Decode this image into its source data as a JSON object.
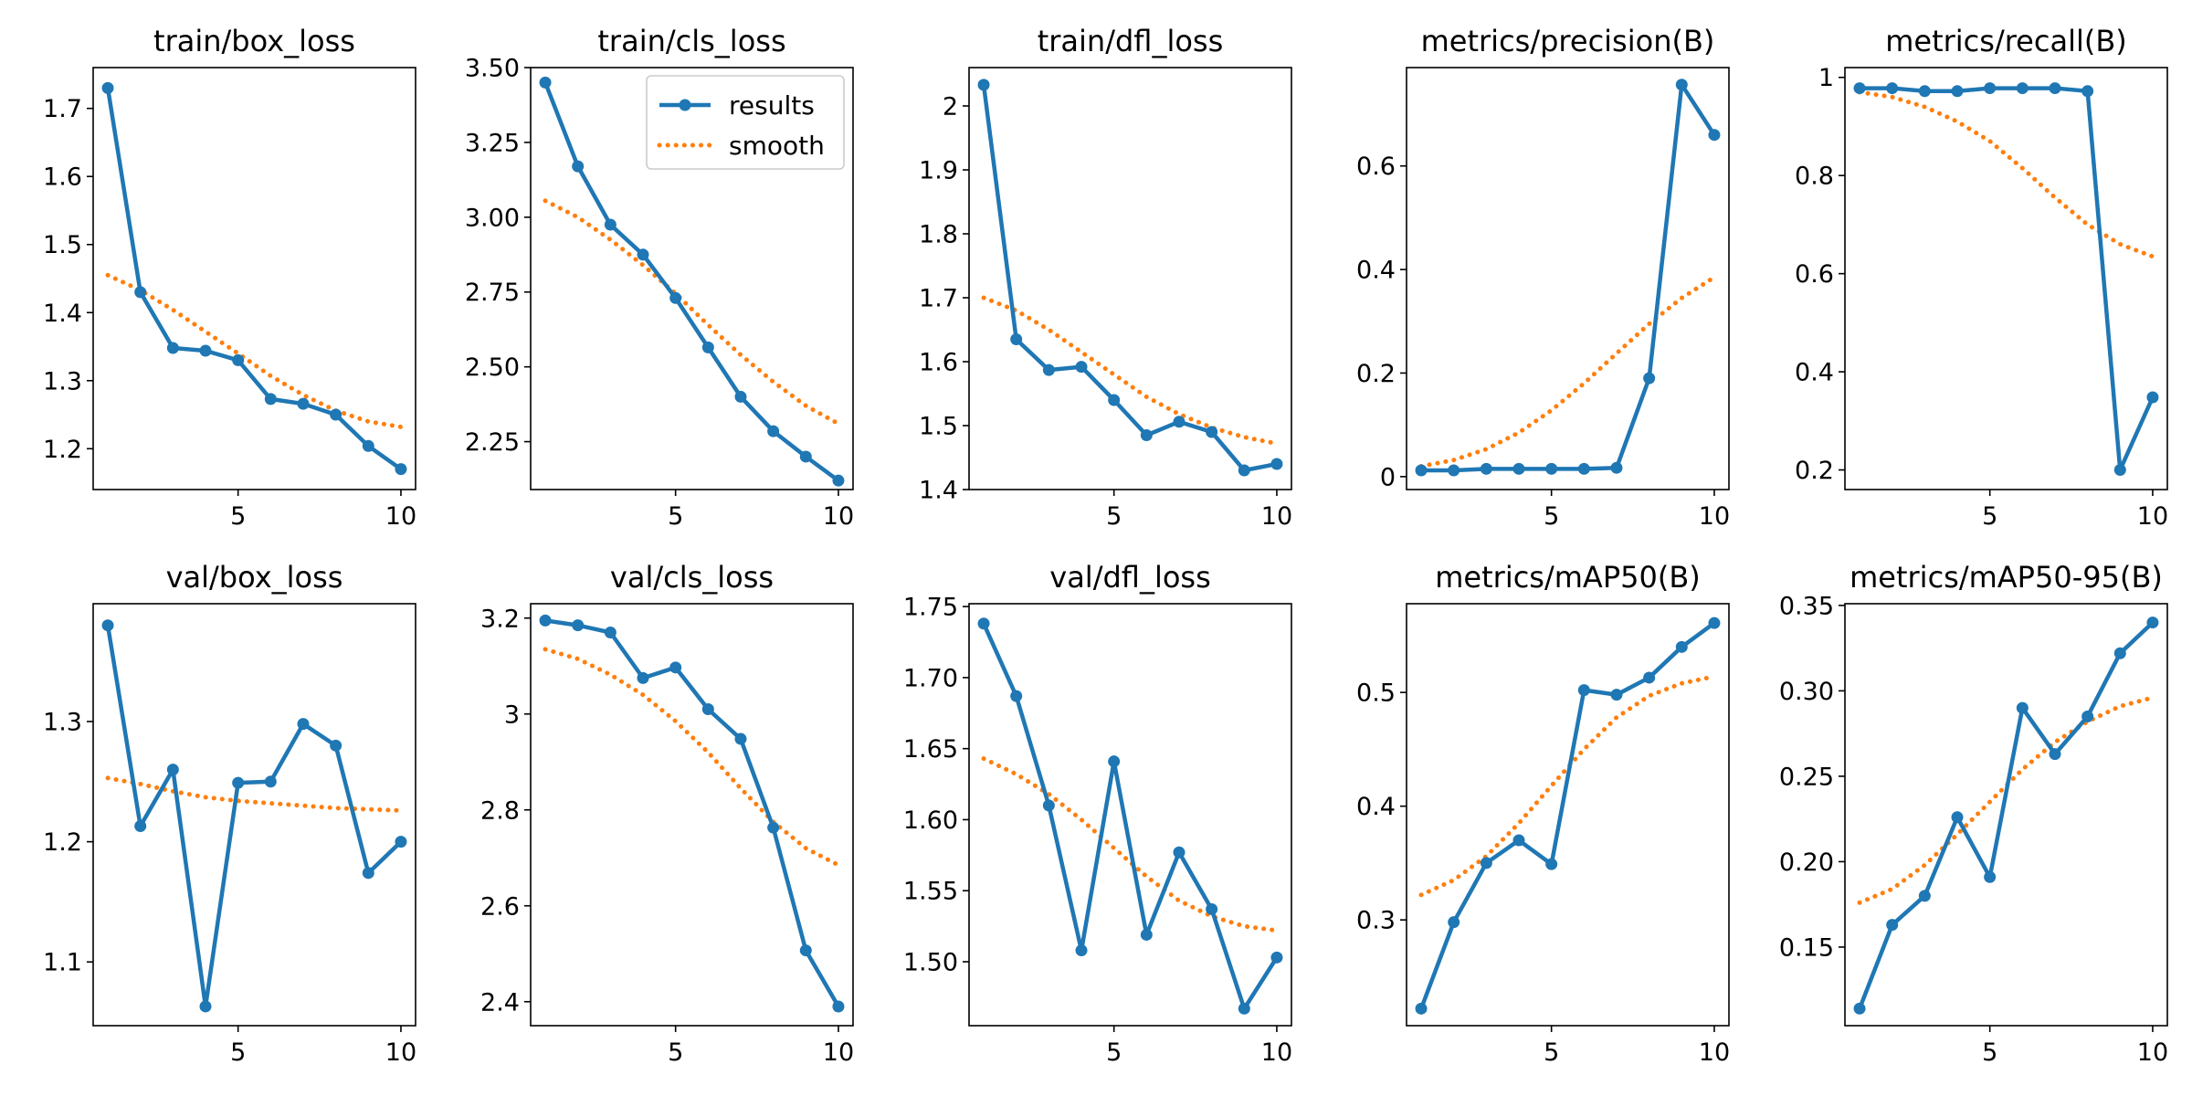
{
  "legend": {
    "results": "results",
    "smooth": "smooth"
  },
  "colors": {
    "results": "#1f77b4",
    "smooth": "#ff7f0e"
  },
  "chart_data": [
    {
      "type": "line",
      "title": "train/box_loss",
      "x": [
        1,
        2,
        3,
        4,
        5,
        6,
        7,
        8,
        9,
        10
      ],
      "ylim": [
        1.14,
        1.76
      ],
      "xticks": [
        5,
        10
      ],
      "yticks": [
        1.2,
        1.3,
        1.4,
        1.5,
        1.6,
        1.7
      ],
      "series": [
        {
          "name": "results",
          "values": [
            1.73,
            1.43,
            1.348,
            1.344,
            1.33,
            1.273,
            1.266,
            1.25,
            1.204,
            1.17
          ]
        },
        {
          "name": "smooth",
          "values": [
            1.455,
            1.433,
            1.404,
            1.372,
            1.34,
            1.307,
            1.279,
            1.256,
            1.24,
            1.232
          ]
        }
      ]
    },
    {
      "type": "line",
      "title": "train/cls_loss",
      "x": [
        1,
        2,
        3,
        4,
        5,
        6,
        7,
        8,
        9,
        10
      ],
      "ylim": [
        2.09,
        3.5
      ],
      "xticks": [
        5,
        10
      ],
      "yticks": [
        2.25,
        2.5,
        2.75,
        3.0,
        3.25,
        3.5
      ],
      "ytick_labels": [
        "2.25",
        "2.50",
        "2.75",
        "3.00",
        "3.25",
        "3.50"
      ],
      "legend": "upper right",
      "series": [
        {
          "name": "results",
          "values": [
            3.45,
            3.17,
            2.975,
            2.875,
            2.73,
            2.565,
            2.4,
            2.285,
            2.2,
            2.12
          ]
        },
        {
          "name": "smooth",
          "values": [
            3.055,
            3.0,
            2.925,
            2.84,
            2.745,
            2.64,
            2.54,
            2.45,
            2.37,
            2.31
          ]
        }
      ]
    },
    {
      "type": "line",
      "title": "train/dfl_loss",
      "x": [
        1,
        2,
        3,
        4,
        5,
        6,
        7,
        8,
        9,
        10
      ],
      "ylim": [
        1.4,
        2.06
      ],
      "xticks": [
        5,
        10
      ],
      "yticks": [
        1.4,
        1.5,
        1.6,
        1.7,
        1.8,
        1.9,
        2.0
      ],
      "series": [
        {
          "name": "results",
          "values": [
            2.033,
            1.635,
            1.587,
            1.592,
            1.54,
            1.485,
            1.506,
            1.49,
            1.43,
            1.44
          ]
        },
        {
          "name": "smooth",
          "values": [
            1.7,
            1.68,
            1.65,
            1.615,
            1.58,
            1.545,
            1.518,
            1.497,
            1.482,
            1.472
          ]
        }
      ]
    },
    {
      "type": "line",
      "title": "metrics/precision(B)",
      "x": [
        1,
        2,
        3,
        4,
        5,
        6,
        7,
        8,
        9,
        10
      ],
      "ylim": [
        -0.025,
        0.79
      ],
      "xticks": [
        5,
        10
      ],
      "yticks": [
        0.0,
        0.2,
        0.4,
        0.6
      ],
      "series": [
        {
          "name": "results",
          "values": [
            0.012,
            0.012,
            0.015,
            0.015,
            0.015,
            0.015,
            0.017,
            0.19,
            0.757,
            0.66
          ]
        },
        {
          "name": "smooth",
          "values": [
            0.02,
            0.032,
            0.053,
            0.085,
            0.128,
            0.18,
            0.238,
            0.295,
            0.345,
            0.385
          ]
        }
      ]
    },
    {
      "type": "line",
      "title": "metrics/recall(B)",
      "x": [
        1,
        2,
        3,
        4,
        5,
        6,
        7,
        8,
        9,
        10
      ],
      "ylim": [
        0.16,
        1.02
      ],
      "xticks": [
        5,
        10
      ],
      "yticks": [
        0.2,
        0.4,
        0.6,
        0.8,
        1.0
      ],
      "series": [
        {
          "name": "results",
          "values": [
            0.978,
            0.978,
            0.972,
            0.972,
            0.978,
            0.978,
            0.978,
            0.972,
            0.2,
            0.348
          ]
        },
        {
          "name": "smooth",
          "values": [
            0.97,
            0.96,
            0.94,
            0.91,
            0.87,
            0.815,
            0.755,
            0.7,
            0.66,
            0.635
          ]
        }
      ]
    },
    {
      "type": "line",
      "title": "val/box_loss",
      "x": [
        1,
        2,
        3,
        4,
        5,
        6,
        7,
        8,
        9,
        10
      ],
      "ylim": [
        1.047,
        1.398
      ],
      "xticks": [
        5,
        10
      ],
      "yticks": [
        1.1,
        1.2,
        1.3
      ],
      "series": [
        {
          "name": "results",
          "values": [
            1.38,
            1.213,
            1.26,
            1.063,
            1.249,
            1.25,
            1.298,
            1.28,
            1.174,
            1.2
          ]
        },
        {
          "name": "smooth",
          "values": [
            1.253,
            1.248,
            1.242,
            1.237,
            1.234,
            1.232,
            1.23,
            1.228,
            1.227,
            1.226
          ]
        }
      ]
    },
    {
      "type": "line",
      "title": "val/cls_loss",
      "x": [
        1,
        2,
        3,
        4,
        5,
        6,
        7,
        8,
        9,
        10
      ],
      "ylim": [
        2.35,
        3.23
      ],
      "xticks": [
        5,
        10
      ],
      "yticks": [
        2.4,
        2.6,
        2.8,
        3.0,
        3.2
      ],
      "series": [
        {
          "name": "results",
          "values": [
            3.195,
            3.185,
            3.17,
            3.075,
            3.097,
            3.01,
            2.948,
            2.763,
            2.507,
            2.39
          ]
        },
        {
          "name": "smooth",
          "values": [
            3.135,
            3.115,
            3.082,
            3.04,
            2.985,
            2.92,
            2.845,
            2.775,
            2.72,
            2.685
          ]
        }
      ]
    },
    {
      "type": "line",
      "title": "val/dfl_loss",
      "x": [
        1,
        2,
        3,
        4,
        5,
        6,
        7,
        8,
        9,
        10
      ],
      "ylim": [
        1.455,
        1.752
      ],
      "xticks": [
        5,
        10
      ],
      "yticks": [
        1.5,
        1.55,
        1.6,
        1.65,
        1.7,
        1.75
      ],
      "ytick_labels": [
        "1.50",
        "1.55",
        "1.60",
        "1.65",
        "1.70",
        "1.75"
      ],
      "series": [
        {
          "name": "results",
          "values": [
            1.738,
            1.687,
            1.61,
            1.508,
            1.641,
            1.519,
            1.577,
            1.537,
            1.467,
            1.503
          ]
        },
        {
          "name": "smooth",
          "values": [
            1.643,
            1.632,
            1.618,
            1.6,
            1.58,
            1.56,
            1.543,
            1.532,
            1.525,
            1.522
          ]
        }
      ]
    },
    {
      "type": "line",
      "title": "metrics/mAP50(B)",
      "x": [
        1,
        2,
        3,
        4,
        5,
        6,
        7,
        8,
        9,
        10
      ],
      "ylim": [
        0.207,
        0.578
      ],
      "xticks": [
        5,
        10
      ],
      "yticks": [
        0.3,
        0.4,
        0.5
      ],
      "series": [
        {
          "name": "results",
          "values": [
            0.222,
            0.298,
            0.35,
            0.37,
            0.349,
            0.502,
            0.498,
            0.513,
            0.54,
            0.561
          ]
        },
        {
          "name": "smooth",
          "values": [
            0.322,
            0.335,
            0.356,
            0.385,
            0.418,
            0.45,
            0.478,
            0.497,
            0.508,
            0.514
          ]
        }
      ]
    },
    {
      "type": "line",
      "title": "metrics/mAP50-95(B)",
      "x": [
        1,
        2,
        3,
        4,
        5,
        6,
        7,
        8,
        9,
        10
      ],
      "ylim": [
        0.104,
        0.351
      ],
      "xticks": [
        5,
        10
      ],
      "yticks": [
        0.15,
        0.2,
        0.25,
        0.3,
        0.35
      ],
      "ytick_labels": [
        "0.15",
        "0.20",
        "0.25",
        "0.30",
        "0.35"
      ],
      "series": [
        {
          "name": "results",
          "values": [
            0.114,
            0.163,
            0.18,
            0.226,
            0.191,
            0.29,
            0.263,
            0.285,
            0.322,
            0.34
          ]
        },
        {
          "name": "smooth",
          "values": [
            0.176,
            0.184,
            0.198,
            0.216,
            0.235,
            0.254,
            0.27,
            0.282,
            0.291,
            0.296
          ]
        }
      ]
    }
  ]
}
